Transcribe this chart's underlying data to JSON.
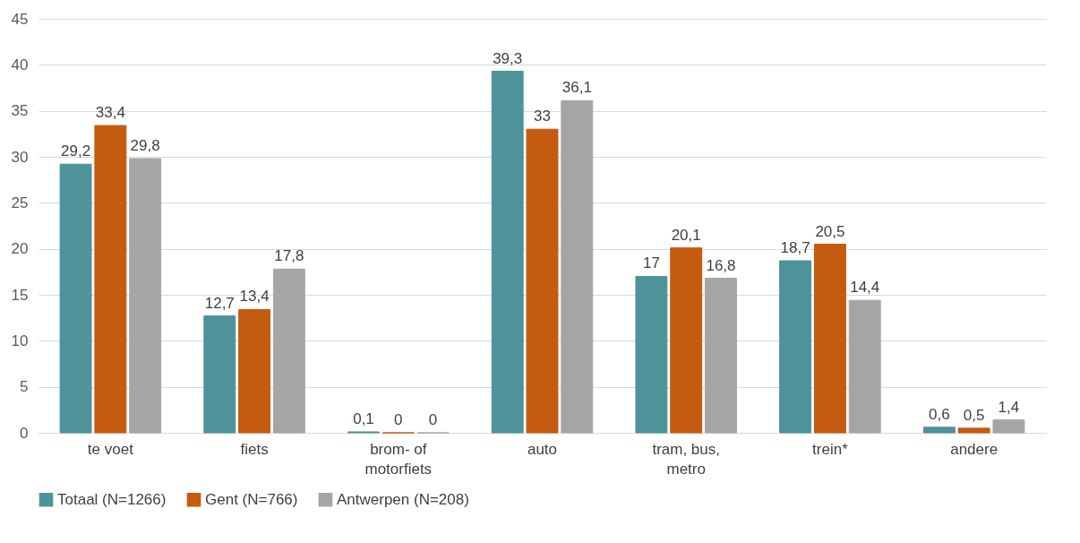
{
  "chart_data": {
    "type": "bar",
    "categories": [
      "te voet",
      "fiets",
      "brom- of\nmotorfiets",
      "auto",
      "tram, bus,\nmetro",
      "trein*",
      "andere"
    ],
    "series": [
      {
        "name": "Totaal (N=1266)",
        "color": "#4e9399",
        "values": [
          29.2,
          12.7,
          0.1,
          39.3,
          17,
          18.7,
          0.6
        ],
        "value_labels": [
          "29,2",
          "12,7",
          "0,1",
          "39,3",
          "17",
          "18,7",
          "0,6"
        ]
      },
      {
        "name": "Gent (N=766)",
        "color": "#c55a11",
        "values": [
          33.4,
          13.4,
          0,
          33,
          20.1,
          20.5,
          0.5
        ],
        "value_labels": [
          "33,4",
          "13,4",
          "0",
          "33",
          "20,1",
          "20,5",
          "0,5"
        ]
      },
      {
        "name": "Antwerpen (N=208)",
        "color": "#a5a5a5",
        "values": [
          29.8,
          17.8,
          0,
          36.1,
          16.8,
          14.4,
          1.4
        ],
        "value_labels": [
          "29,8",
          "17,8",
          "0",
          "36,1",
          "16,8",
          "14,4",
          "1,4"
        ]
      }
    ],
    "ylim": [
      0,
      45
    ],
    "yticks": [
      0,
      5,
      10,
      15,
      20,
      25,
      30,
      35,
      40,
      45
    ],
    "grid": "y",
    "legend": "bottom"
  }
}
